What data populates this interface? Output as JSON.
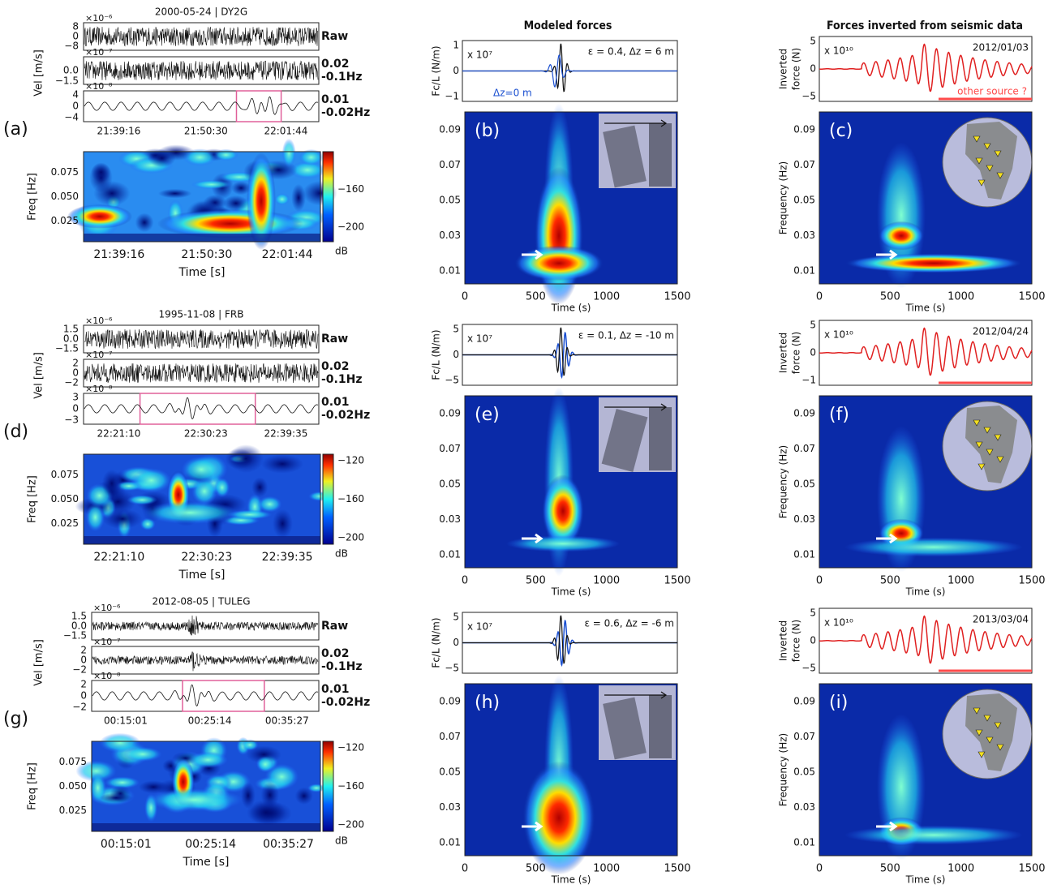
{
  "column_titles": [
    "Modeled forces",
    "Forces inverted from seismic data"
  ],
  "freq_axis": {
    "label": "Frequency (Hz)",
    "ticks": [
      "0.09",
      "0.07",
      "0.05",
      "0.03",
      "0.01"
    ]
  },
  "time_axis": {
    "label": "Time (s)",
    "ticks": [
      "0",
      "500",
      "1000",
      "1500"
    ]
  },
  "rows": [
    {
      "panel": "(a)",
      "title": "2000-05-24 | DY2G",
      "vel_label": "Vel [m/s]",
      "traces": [
        {
          "exponent": "×10⁻⁶",
          "ticks": [
            "8",
            "0",
            "−8"
          ],
          "band": [
            "Raw"
          ]
        },
        {
          "exponent": "×10⁻⁷",
          "ticks": [
            "0.0",
            "−1.5"
          ],
          "band": [
            "0.02",
            "-0.1Hz"
          ]
        },
        {
          "exponent": "×10⁻⁸",
          "ticks": [
            "4",
            "0",
            "−4"
          ],
          "band": [
            "0.01",
            "-0.02Hz"
          ]
        }
      ],
      "times": [
        "21:39:16",
        "21:50:30",
        "22:01:44"
      ],
      "spec": {
        "ylabel": "Freq [Hz]",
        "yticks": [
          "0.075",
          "0.050",
          "0.025"
        ],
        "cbar": [
          "−160",
          "−200"
        ],
        "unit": "dB",
        "xlabel": "Time [s]"
      },
      "modeled": {
        "panel": "(b)",
        "ylabel": "Fc/L (N/m)",
        "exponent": "x 10⁷",
        "annotation": "ε = 0.4, Δz = 6 m",
        "note": "Δz=0 m",
        "ticks": [
          "1",
          "0",
          "−1"
        ]
      },
      "inverted": {
        "panel": "(c)",
        "ylabel": [
          "Inverted",
          "force (N)"
        ],
        "exponent": "x 10¹⁰",
        "date": "2012/01/03",
        "ticks": [
          "5",
          "0",
          "−5"
        ],
        "note": "other source ?"
      }
    },
    {
      "panel": "(d)",
      "title": "1995-11-08 | FRB",
      "vel_label": "Vel [m/s]",
      "traces": [
        {
          "exponent": "×10⁻⁶",
          "ticks": [
            "1.5",
            "0.0",
            "−1.5"
          ],
          "band": [
            "Raw"
          ]
        },
        {
          "exponent": "×10⁻⁷",
          "ticks": [
            "2",
            "0",
            "−2"
          ],
          "band": [
            "0.02",
            "-0.1Hz"
          ]
        },
        {
          "exponent": "×10⁻⁸",
          "ticks": [
            "3",
            "0",
            "−3"
          ],
          "band": [
            "0.01",
            "-0.02Hz"
          ]
        }
      ],
      "times": [
        "22:21:10",
        "22:30:23",
        "22:39:35"
      ],
      "spec": {
        "ylabel": "Freq [Hz]",
        "yticks": [
          "0.075",
          "0.050",
          "0.025"
        ],
        "cbar": [
          "−120",
          "−160",
          "−200"
        ],
        "unit": "dB",
        "xlabel": "Time [s]"
      },
      "modeled": {
        "panel": "(e)",
        "ylabel": "Fc/L (N/m)",
        "exponent": "x 10⁷",
        "annotation": "ε = 0.1, Δz = -10 m",
        "ticks": [
          "5",
          "0",
          "−5"
        ]
      },
      "inverted": {
        "panel": "(f)",
        "ylabel": [
          "Inverted",
          "force (N)"
        ],
        "exponent": "x 10¹⁰",
        "date": "2012/04/24",
        "ticks": [
          "5",
          "0",
          "−1"
        ]
      }
    },
    {
      "panel": "(g)",
      "title": "2012-08-05 | TULEG",
      "vel_label": "Vel [m/s]",
      "traces": [
        {
          "exponent": "×10⁻⁶",
          "ticks": [
            "1.5",
            "0.0",
            "−1.5"
          ],
          "band": [
            "Raw"
          ]
        },
        {
          "exponent": "×10⁻⁷",
          "ticks": [
            "2",
            "0",
            "−2"
          ],
          "band": [
            "0.02",
            "-0.1Hz"
          ]
        },
        {
          "exponent": "×10⁻⁸",
          "ticks": [
            "2",
            "0",
            "−2"
          ],
          "band": [
            "0.01",
            "-0.02Hz"
          ]
        }
      ],
      "times": [
        "00:15:01",
        "00:25:14",
        "00:35:27"
      ],
      "spec": {
        "ylabel": "Freq [Hz]",
        "yticks": [
          "0.075",
          "0.050",
          "0.025"
        ],
        "cbar": [
          "−120",
          "−160",
          "−200"
        ],
        "unit": "dB",
        "xlabel": "Time [s]"
      },
      "modeled": {
        "panel": "(h)",
        "ylabel": "Fc/L (N/m)",
        "exponent": "x 10⁷",
        "annotation": "ε = 0.6, Δz = -6 m",
        "ticks": [
          "5",
          "0",
          "−5"
        ]
      },
      "inverted": {
        "panel": "(i)",
        "ylabel": [
          "Inverted",
          "force (N)"
        ],
        "exponent": "x 10¹⁰",
        "date": "2013/03/04",
        "ticks": [
          "5",
          "0",
          "−5"
        ]
      }
    }
  ]
}
